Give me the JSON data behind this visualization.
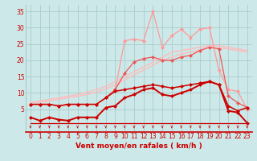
{
  "x": [
    0,
    1,
    2,
    3,
    4,
    5,
    6,
    7,
    8,
    9,
    10,
    11,
    12,
    13,
    14,
    15,
    16,
    17,
    18,
    19,
    20,
    21,
    22,
    23
  ],
  "line_peak": [
    6.5,
    6.5,
    6.5,
    6.0,
    6.5,
    6.5,
    6.5,
    6.5,
    8.5,
    11.0,
    26.0,
    26.5,
    26.0,
    35.0,
    24.0,
    27.5,
    29.5,
    27.0,
    29.5,
    30.0,
    17.0,
    11.0,
    10.5,
    5.0
  ],
  "line_mid_upper": [
    6.5,
    6.5,
    6.5,
    6.0,
    6.5,
    6.5,
    6.5,
    6.5,
    8.5,
    11.0,
    16.0,
    19.5,
    20.5,
    21.0,
    20.0,
    20.0,
    21.0,
    21.5,
    23.0,
    24.0,
    23.5,
    9.0,
    7.0,
    5.5
  ],
  "line_reg_upper": [
    7.0,
    7.5,
    8.0,
    8.5,
    9.0,
    9.5,
    10.2,
    11.0,
    12.0,
    13.5,
    15.0,
    16.5,
    18.0,
    19.5,
    21.0,
    22.5,
    23.0,
    23.5,
    24.0,
    24.5,
    24.5,
    24.0,
    23.5,
    23.0
  ],
  "line_reg_lower": [
    7.0,
    7.2,
    7.5,
    8.0,
    8.5,
    9.0,
    9.5,
    10.2,
    11.2,
    12.5,
    14.0,
    15.5,
    17.0,
    18.5,
    20.0,
    21.0,
    22.0,
    22.5,
    23.2,
    24.0,
    23.8,
    23.5,
    23.0,
    22.5
  ],
  "line_dark_upper": [
    6.5,
    6.5,
    6.5,
    6.0,
    6.5,
    6.5,
    6.5,
    6.5,
    8.5,
    10.5,
    11.0,
    11.5,
    12.0,
    12.5,
    12.0,
    11.5,
    12.0,
    12.5,
    13.0,
    13.5,
    12.5,
    6.0,
    4.5,
    5.5
  ],
  "line_dark_lower": [
    2.5,
    1.5,
    2.5,
    1.8,
    1.5,
    2.5,
    2.5,
    2.5,
    5.5,
    6.0,
    8.5,
    9.5,
    11.0,
    11.5,
    9.5,
    9.0,
    10.0,
    11.0,
    12.5,
    13.5,
    12.5,
    4.5,
    4.0,
    0.8
  ],
  "line_flat": [
    0.8,
    0.8,
    0.8,
    0.8,
    0.8,
    0.8,
    0.8,
    0.8,
    0.8,
    0.8,
    0.8,
    0.8,
    0.8,
    0.8,
    0.8,
    0.8,
    0.8,
    0.8,
    0.8,
    0.8,
    0.8,
    0.8,
    0.8,
    0.8
  ],
  "bg_color": "#cce8e8",
  "grid_color": "#aacccc",
  "color_dark": "#cc0000",
  "color_medium": "#ee5555",
  "color_light": "#ff9999",
  "color_vlight": "#ffbbbb",
  "xlabel": "Vent moyen/en rafales ( km/h )",
  "ylim": [
    -2,
    37
  ],
  "xlim": [
    -0.5,
    23.5
  ],
  "yticks": [
    5,
    10,
    15,
    20,
    25,
    30,
    35
  ],
  "xticks": [
    0,
    1,
    2,
    3,
    4,
    5,
    6,
    7,
    8,
    9,
    10,
    11,
    12,
    13,
    14,
    15,
    16,
    17,
    18,
    19,
    20,
    21,
    22,
    23
  ]
}
